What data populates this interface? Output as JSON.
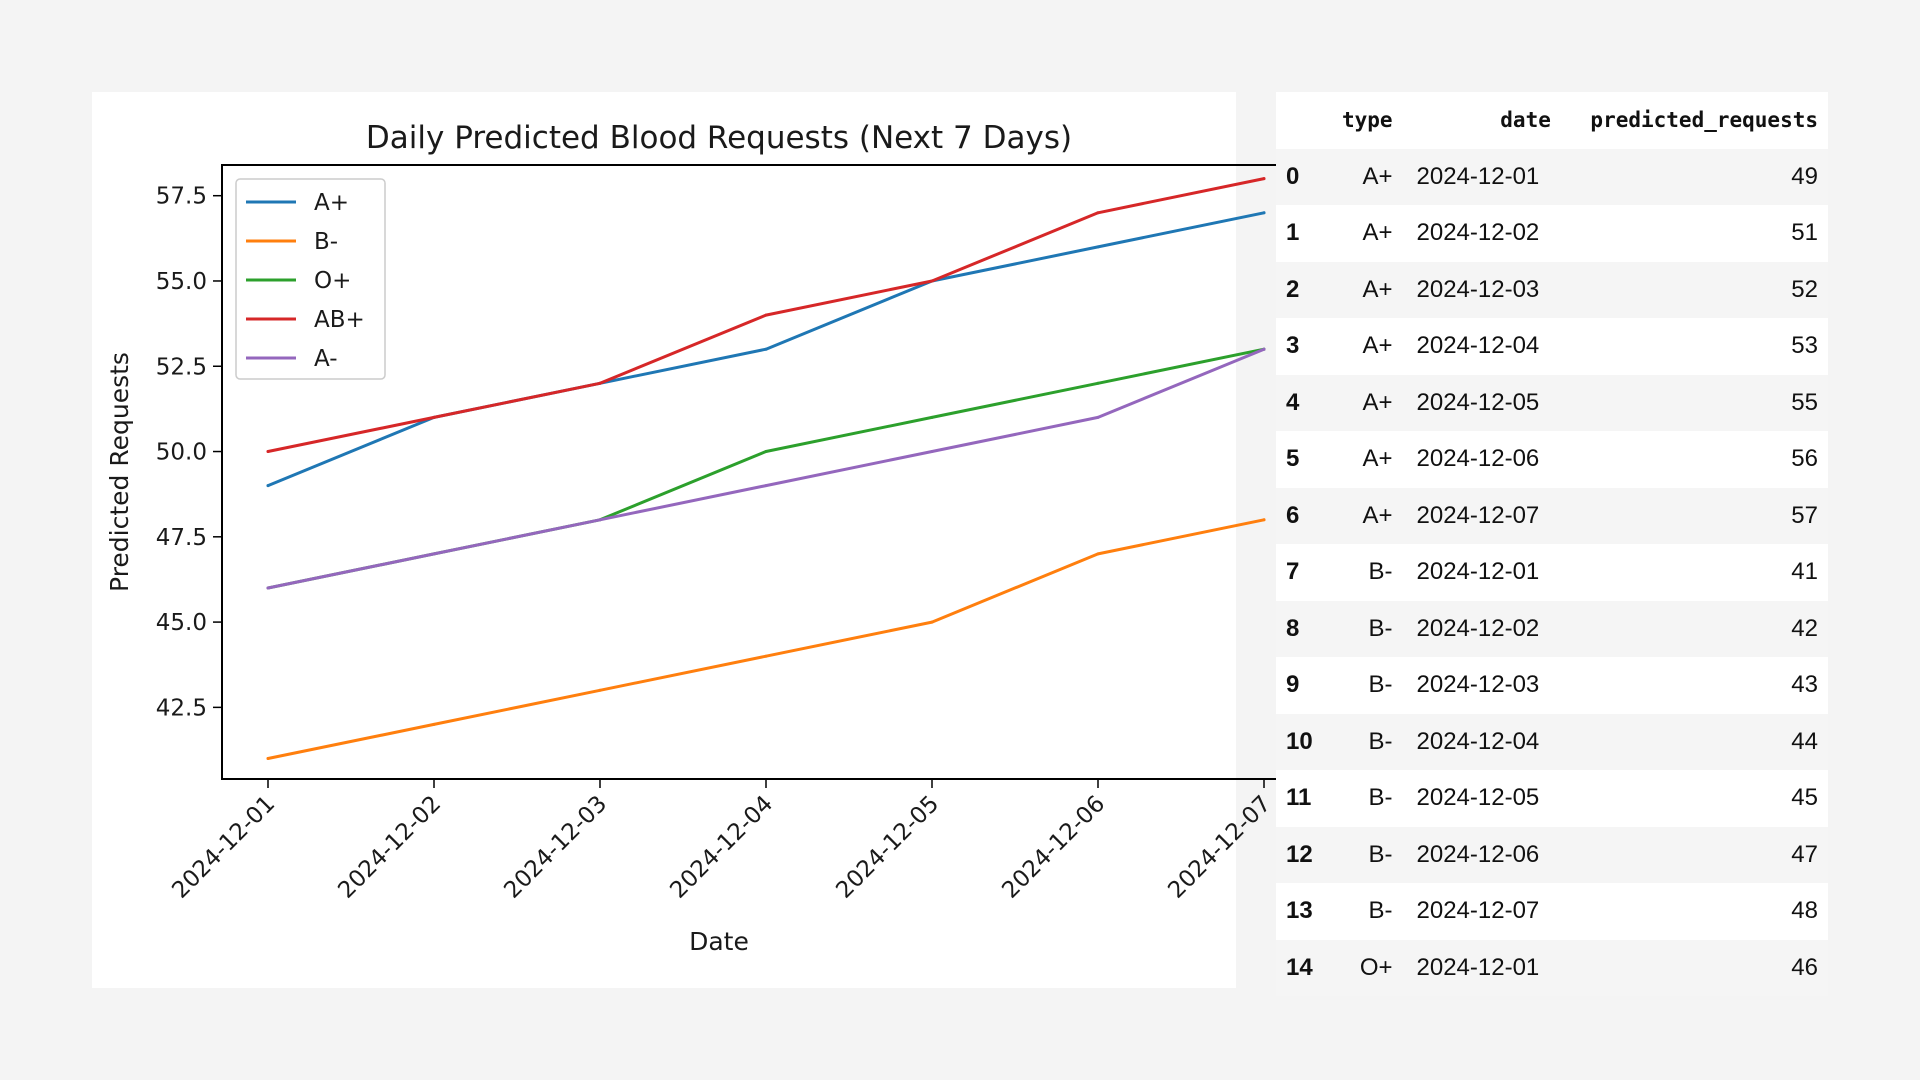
{
  "chart_data": {
    "type": "line",
    "title": "Daily Predicted Blood Requests (Next 7 Days)",
    "xlabel": "Date",
    "ylabel": "Predicted Requests",
    "categories": [
      "2024-12-01",
      "2024-12-02",
      "2024-12-03",
      "2024-12-04",
      "2024-12-05",
      "2024-12-06",
      "2024-12-07"
    ],
    "ylim": [
      40.4,
      58.4
    ],
    "yticks": [
      "42.5",
      "45.0",
      "47.5",
      "50.0",
      "52.5",
      "55.0",
      "57.5"
    ],
    "grid": false,
    "legend_position": "upper-left",
    "series": [
      {
        "name": "A+",
        "color": "#1f77b4",
        "values": [
          49,
          51,
          52,
          53,
          55,
          56,
          57
        ]
      },
      {
        "name": "B-",
        "color": "#ff7f0e",
        "values": [
          41,
          42,
          43,
          44,
          45,
          47,
          48
        ]
      },
      {
        "name": "O+",
        "color": "#2ca02c",
        "values": [
          46,
          47,
          48,
          50,
          51,
          52,
          53
        ]
      },
      {
        "name": "AB+",
        "color": "#d62728",
        "values": [
          50,
          51,
          52,
          54,
          55,
          57,
          58
        ]
      },
      {
        "name": "A-",
        "color": "#9467bd",
        "values": [
          46,
          47,
          48,
          49,
          50,
          51,
          53
        ]
      }
    ]
  },
  "table": {
    "columns": [
      "",
      "type",
      "date",
      "predicted_requests"
    ],
    "rows": [
      [
        "0",
        "A+",
        "2024-12-01",
        "49"
      ],
      [
        "1",
        "A+",
        "2024-12-02",
        "51"
      ],
      [
        "2",
        "A+",
        "2024-12-03",
        "52"
      ],
      [
        "3",
        "A+",
        "2024-12-04",
        "53"
      ],
      [
        "4",
        "A+",
        "2024-12-05",
        "55"
      ],
      [
        "5",
        "A+",
        "2024-12-06",
        "56"
      ],
      [
        "6",
        "A+",
        "2024-12-07",
        "57"
      ],
      [
        "7",
        "B-",
        "2024-12-01",
        "41"
      ],
      [
        "8",
        "B-",
        "2024-12-02",
        "42"
      ],
      [
        "9",
        "B-",
        "2024-12-03",
        "43"
      ],
      [
        "10",
        "B-",
        "2024-12-04",
        "44"
      ],
      [
        "11",
        "B-",
        "2024-12-05",
        "45"
      ],
      [
        "12",
        "B-",
        "2024-12-06",
        "47"
      ],
      [
        "13",
        "B-",
        "2024-12-07",
        "48"
      ],
      [
        "14",
        "O+",
        "2024-12-01",
        "46"
      ]
    ]
  }
}
